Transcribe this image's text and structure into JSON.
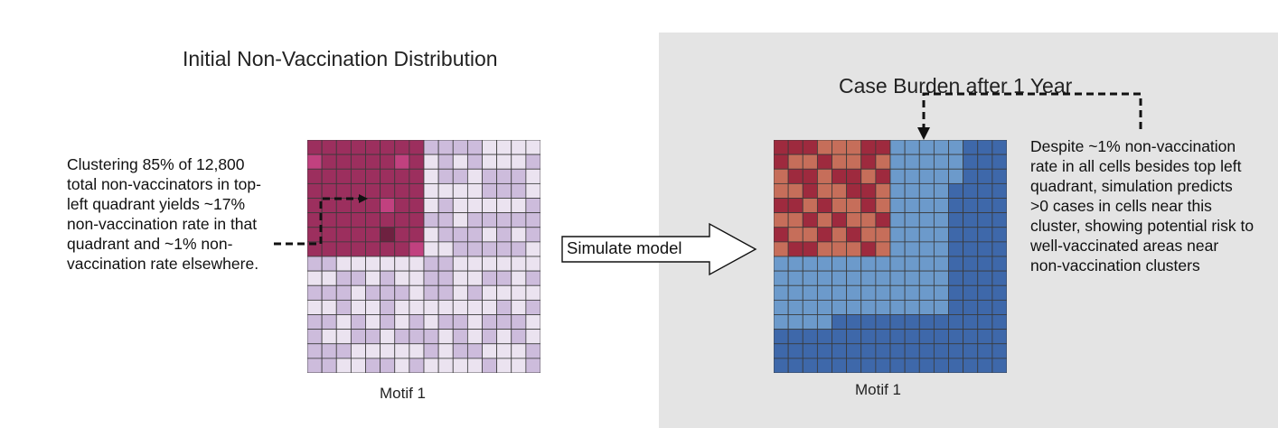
{
  "left_panel": {
    "title": "Initial Non-Vaccination Distribution",
    "description": "Clustering 85% of 12,800 total non-vaccinators in top-left quadrant yields ~17% non-vaccination rate in that quadrant and ~1% non-vaccination rate elsewhere.",
    "caption": "Motif 1",
    "grid": {
      "rows": 16,
      "cols": 16,
      "quadrant_rows": 8,
      "quadrant_cols": 8,
      "palette": {
        "cluster": "#9c2f5e",
        "cluster_light": "#c1417f",
        "cluster_dark": "#6e2140",
        "low": "#cdbcdc",
        "very_low": "#ebe3f0"
      }
    }
  },
  "arrow": {
    "label": "Simulate model"
  },
  "right_panel": {
    "title": "Case Burden after 1 Year",
    "description": "Despite ~1% non-vaccination rate in all cells besides top left quadrant, simulation predicts >0 cases in cells near this cluster, showing potential risk to well-vaccinated areas near non-vaccination clusters",
    "caption": "Motif 1",
    "grid": {
      "rows": 16,
      "cols": 16,
      "palette": {
        "high": "#9e2a3e",
        "medium": "#c66e5a",
        "light_blue": "#6c9acb",
        "dark_blue": "#3e68aa"
      }
    }
  },
  "colors": {
    "panel_background": "#e4e4e4",
    "grid_line": "#3a3a3a"
  }
}
